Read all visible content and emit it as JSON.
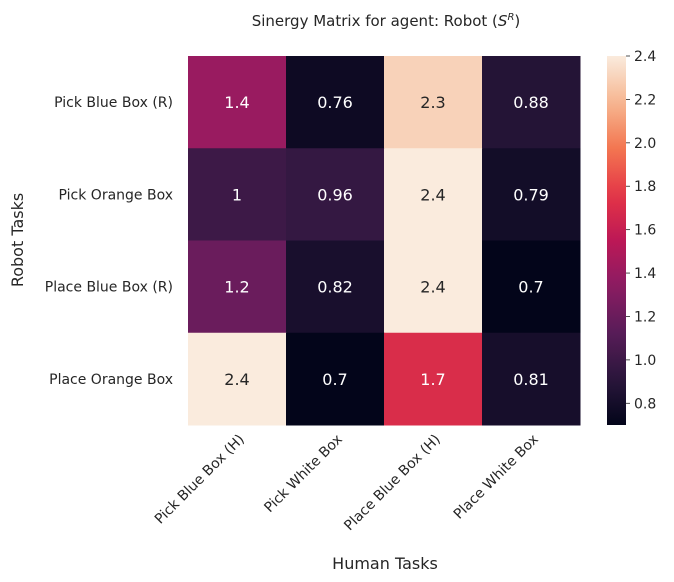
{
  "chart_data": {
    "type": "heatmap",
    "title_main": "Sinergy Matrix for agent: Robot (",
    "title_symbol": "S",
    "title_sup": "R",
    "title_close": ")",
    "xlabel": "Human Tasks",
    "ylabel": "Robot Tasks",
    "x_categories": [
      "Pick Blue Box (H)",
      "Pick White Box",
      "Place Blue Box (H)",
      "Place White Box"
    ],
    "y_categories": [
      "Pick Blue Box (R)",
      "Pick Orange Box",
      "Place Blue Box (R)",
      "Place Orange Box"
    ],
    "values": [
      [
        1.4,
        0.76,
        2.3,
        0.88
      ],
      [
        1,
        0.96,
        2.4,
        0.79
      ],
      [
        1.2,
        0.82,
        2.4,
        0.7
      ],
      [
        2.4,
        0.7,
        1.7,
        0.81
      ]
    ],
    "value_labels": [
      [
        "1.4",
        "0.76",
        "2.3",
        "0.88"
      ],
      [
        "1",
        "0.96",
        "2.4",
        "0.79"
      ],
      [
        "1.2",
        "0.82",
        "2.4",
        "0.7"
      ],
      [
        "2.4",
        "0.7",
        "1.7",
        "0.81"
      ]
    ],
    "colorbar_range": [
      0.7,
      2.4
    ],
    "colorbar_ticks": [
      "0.8",
      "1.0",
      "1.2",
      "1.4",
      "1.6",
      "1.8",
      "2.0",
      "2.2",
      "2.4"
    ],
    "colormap": "rocket",
    "grid": false
  }
}
